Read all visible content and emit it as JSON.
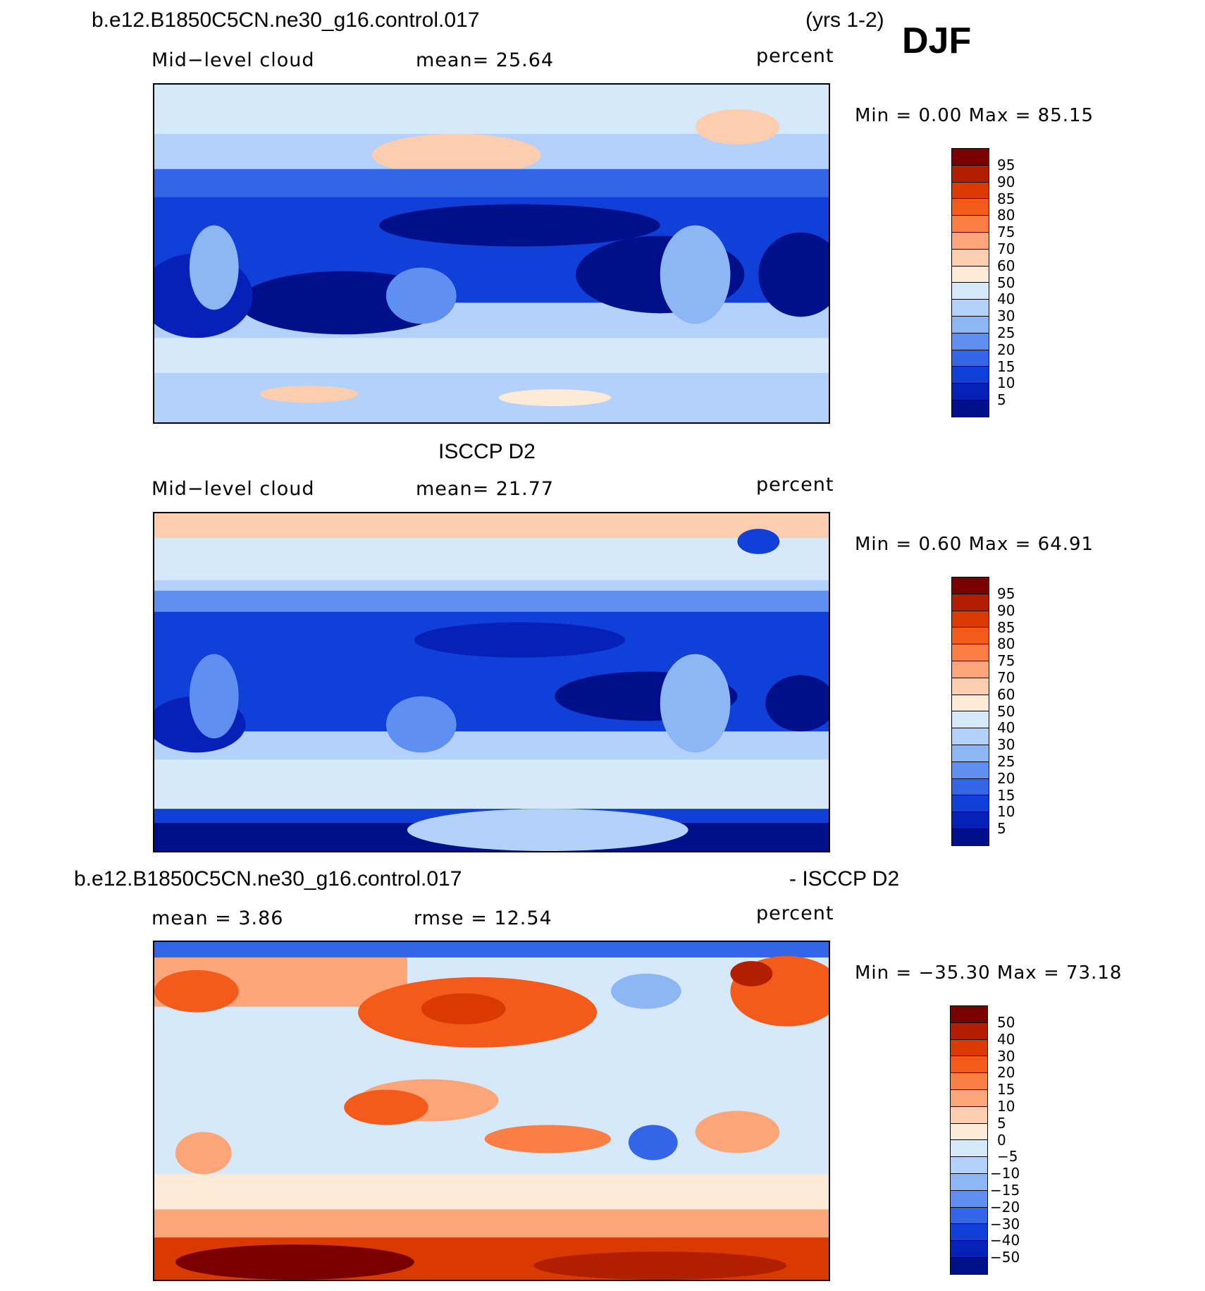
{
  "header": {
    "case_title": "b.e12.B1850C5CN.ne30_g16.control.017",
    "years": "(yrs 1-2)",
    "season": "DJF"
  },
  "panels": [
    {
      "id": "model",
      "title": "",
      "left_label": "Mid−level cloud",
      "center_label": "mean=   25.64",
      "units": "percent",
      "minmax": "Min =     0.00 Max =   85.15",
      "colorbar_ticks": [
        "95",
        "90",
        "85",
        "80",
        "75",
        "70",
        "60",
        "50",
        "40",
        "30",
        "25",
        "20",
        "15",
        "10",
        "5"
      ],
      "colors": [
        "#7a0000",
        "#b21f00",
        "#d93a00",
        "#f45a1a",
        "#fb7f45",
        "#fba578",
        "#fdcdb0",
        "#fdebd7",
        "#d6e9fb",
        "#b3d1fa",
        "#8db6f5",
        "#5f8ff0",
        "#3465e6",
        "#1140d8",
        "#0521b8",
        "#000f8a"
      ]
    },
    {
      "id": "obs",
      "title": "ISCCP D2",
      "left_label": "Mid−level cloud",
      "center_label": "mean=   21.77",
      "units": "percent",
      "minmax": "Min =     0.60 Max =   64.91",
      "colorbar_ticks": [
        "95",
        "90",
        "85",
        "80",
        "75",
        "70",
        "60",
        "50",
        "40",
        "30",
        "25",
        "20",
        "15",
        "10",
        "5"
      ],
      "colors": [
        "#7a0000",
        "#b21f00",
        "#d93a00",
        "#f45a1a",
        "#fb7f45",
        "#fba578",
        "#fdcdb0",
        "#fdebd7",
        "#d6e9fb",
        "#b3d1fa",
        "#8db6f5",
        "#5f8ff0",
        "#3465e6",
        "#1140d8",
        "#0521b8",
        "#000f8a"
      ]
    },
    {
      "id": "diff",
      "title_left": "b.e12.B1850C5CN.ne30_g16.control.017",
      "title_right": "- ISCCP D2",
      "left_label": "mean =     3.86",
      "center_label": "rmse =    12.54",
      "units": "percent",
      "minmax": "Min = −35.30 Max =   73.18",
      "colorbar_ticks": [
        "50",
        "40",
        "30",
        "20",
        "15",
        "10",
        "5",
        "0",
        "−5",
        "−10",
        "−15",
        "−20",
        "−30",
        "−40",
        "−50"
      ],
      "colors": [
        "#7a0000",
        "#b21f00",
        "#d93a00",
        "#f45a1a",
        "#fb7f45",
        "#fba578",
        "#fdcdb0",
        "#fdebd7",
        "#d6e9fb",
        "#b3d1fa",
        "#8db6f5",
        "#5f8ff0",
        "#3465e6",
        "#1140d8",
        "#0521b8",
        "#000f8a"
      ]
    }
  ]
}
